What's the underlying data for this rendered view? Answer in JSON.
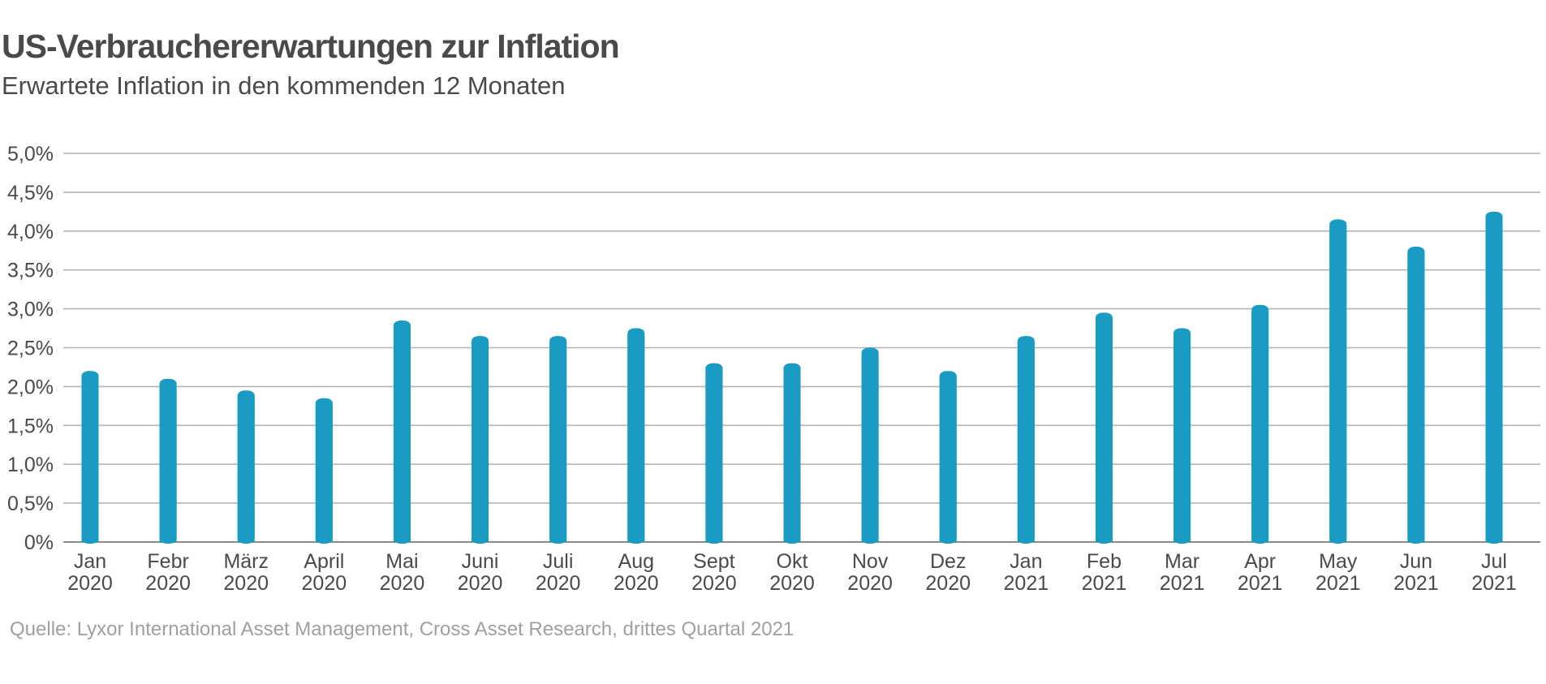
{
  "chart_data": {
    "type": "bar",
    "title": "US-Verbrauchererwartungen zur Inflation",
    "subtitle": "Erwartete Inflation in den kommenden 12 Monaten",
    "source": "Quelle: Lyxor International Asset Management, Cross Asset Research, drittes Quartal 2021",
    "categories": [
      [
        "Jan",
        "2020"
      ],
      [
        "Febr",
        "2020"
      ],
      [
        "März",
        "2020"
      ],
      [
        "April",
        "2020"
      ],
      [
        "Mai",
        "2020"
      ],
      [
        "Juni",
        "2020"
      ],
      [
        "Juli",
        "2020"
      ],
      [
        "Aug",
        "2020"
      ],
      [
        "Sept",
        "2020"
      ],
      [
        "Okt",
        "2020"
      ],
      [
        "Nov",
        "2020"
      ],
      [
        "Dez",
        "2020"
      ],
      [
        "Jan",
        "2021"
      ],
      [
        "Feb",
        "2021"
      ],
      [
        "Mar",
        "2021"
      ],
      [
        "Apr",
        "2021"
      ],
      [
        "May",
        "2021"
      ],
      [
        "Jun",
        "2021"
      ],
      [
        "Jul",
        "2021"
      ]
    ],
    "values": [
      2.2,
      2.1,
      1.95,
      1.85,
      2.85,
      2.65,
      2.65,
      2.75,
      2.3,
      2.3,
      2.5,
      2.2,
      2.65,
      2.95,
      2.75,
      3.05,
      4.15,
      3.8,
      4.25
    ],
    "ylim": [
      0,
      5
    ],
    "yticks": [
      "0%",
      "0,5%",
      "1,0%",
      "1,5%",
      "2,0%",
      "2,5%",
      "3,0%",
      "3,5%",
      "4,0%",
      "4,5%",
      "5,0%"
    ],
    "ytick_values": [
      0,
      0.5,
      1,
      1.5,
      2,
      2.5,
      3,
      3.5,
      4,
      4.5,
      5
    ],
    "grid": true,
    "bar_color": "#1a9bc4",
    "grid_color": "#b4b4b4"
  }
}
